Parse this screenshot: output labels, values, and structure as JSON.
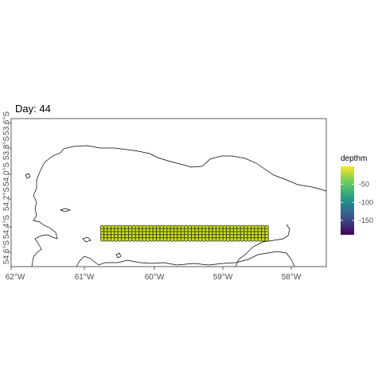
{
  "plot": {
    "title": "Day: 44"
  },
  "map": {
    "x_ticks": [
      "62°W",
      "61°W",
      "60°W",
      "59°W",
      "58°W"
    ],
    "y_ticks": [
      "54.6°S",
      "54.4°S",
      "54.2°S",
      "54.0°S",
      "53.8°S",
      "53.6°S"
    ],
    "lon_range": [
      -62,
      -57.5
    ],
    "lat_range": [
      -54.7,
      -53.5
    ],
    "coast_color": "#000000",
    "point_fill": "#cde11d",
    "point_outline": "#000000"
  },
  "legend": {
    "title": "depthm",
    "labels": [
      "-50",
      "-100",
      "-150"
    ],
    "values": [
      -50,
      -100,
      -150
    ],
    "range": [
      -190,
      0
    ],
    "colors": [
      "#440154",
      "#3b528b",
      "#21918c",
      "#5ec962",
      "#fde725"
    ]
  },
  "chart_data": {
    "type": "scatter",
    "title": "Day: 44",
    "xlabel": "",
    "ylabel": "",
    "xlim": [
      -62,
      -57.5
    ],
    "ylim": [
      -54.7,
      -53.5
    ],
    "color_variable": "depthm",
    "grid": {
      "lon_start": -60.7,
      "lon_end": -58.35,
      "n_lon": 48,
      "lat_start": -54.38,
      "lat_end": -54.48,
      "n_lat": 5,
      "depthm": -8
    }
  }
}
